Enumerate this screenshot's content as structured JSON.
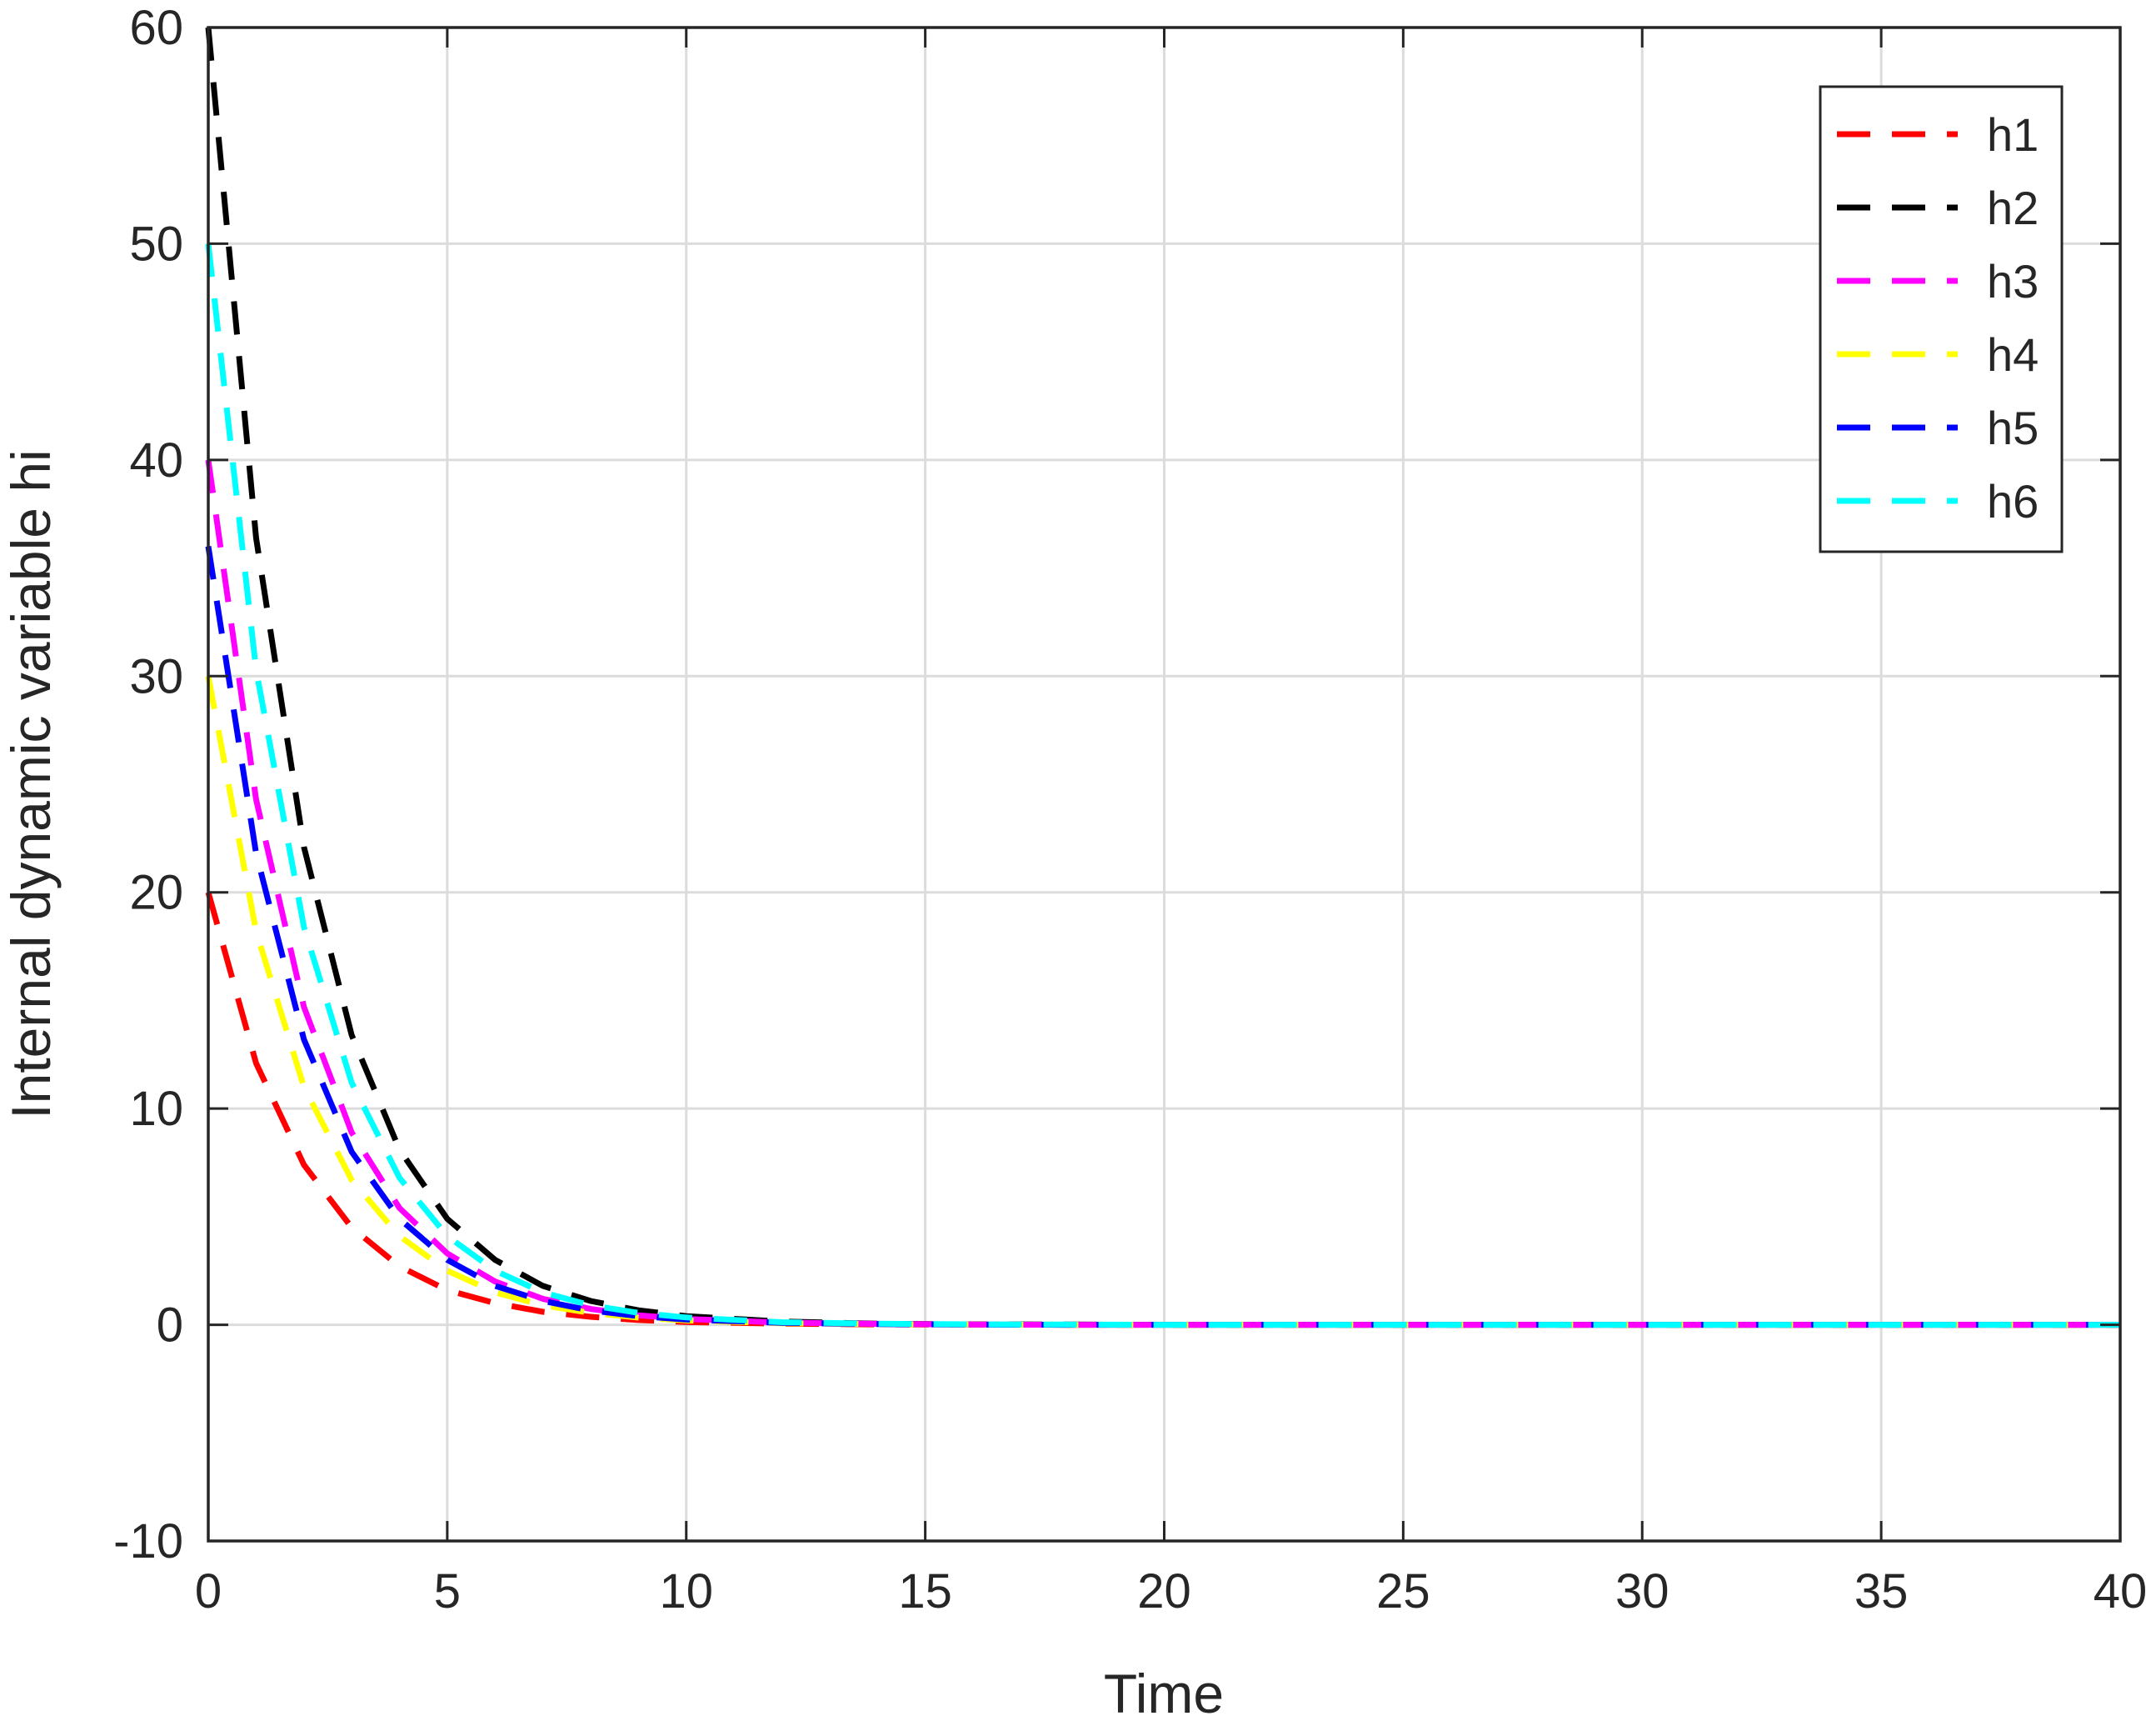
{
  "chart_data": {
    "type": "line",
    "title": "",
    "xlabel": "Time",
    "ylabel": "Internal dynamic variable hi",
    "xlim": [
      0,
      40
    ],
    "ylim": [
      -10,
      60
    ],
    "xticks": [
      0,
      5,
      10,
      15,
      20,
      25,
      30,
      35,
      40
    ],
    "xtick_labels": [
      "0",
      "5",
      "10",
      "15",
      "20",
      "25",
      "30",
      "35",
      "40"
    ],
    "yticks": [
      -10,
      0,
      10,
      20,
      30,
      40,
      50,
      60
    ],
    "ytick_labels": [
      "-10",
      "0",
      "10",
      "20",
      "30",
      "40",
      "50",
      "60"
    ],
    "grid": true,
    "legend_position": "top-right",
    "line_style": "dashed",
    "x": [
      0,
      1,
      2,
      3,
      4,
      5,
      6,
      7,
      8,
      9,
      10,
      12,
      14,
      16,
      18,
      20,
      25,
      30,
      35,
      40
    ],
    "series": [
      {
        "name": "h1",
        "color": "#ff0000",
        "values": [
          20,
          12.1,
          7.4,
          4.5,
          2.7,
          1.6,
          1.0,
          0.6,
          0.37,
          0.22,
          0.13,
          0.05,
          0.02,
          0.01,
          0,
          0,
          0,
          0,
          0,
          0
        ]
      },
      {
        "name": "h2",
        "color": "#000000",
        "values": [
          60,
          36.4,
          22.1,
          13.4,
          8.1,
          4.9,
          3.0,
          1.8,
          1.1,
          0.67,
          0.4,
          0.15,
          0.05,
          0.02,
          0.01,
          0,
          0,
          0,
          0,
          0
        ]
      },
      {
        "name": "h3",
        "color": "#ff00ff",
        "values": [
          40,
          24.3,
          14.7,
          8.9,
          5.4,
          3.3,
          2.0,
          1.2,
          0.73,
          0.44,
          0.27,
          0.1,
          0.04,
          0.01,
          0,
          0,
          0,
          0,
          0,
          0
        ]
      },
      {
        "name": "h4",
        "color": "#ffff00",
        "values": [
          30,
          18.2,
          11.0,
          6.7,
          4.1,
          2.5,
          1.5,
          0.9,
          0.55,
          0.33,
          0.2,
          0.07,
          0.03,
          0.01,
          0,
          0,
          0,
          0,
          0,
          0
        ]
      },
      {
        "name": "h5",
        "color": "#0000ff",
        "values": [
          36,
          21.8,
          13.2,
          8.0,
          4.9,
          3.0,
          1.8,
          1.1,
          0.66,
          0.4,
          0.24,
          0.09,
          0.03,
          0.01,
          0,
          0,
          0,
          0,
          0,
          0
        ]
      },
      {
        "name": "h6",
        "color": "#00ffff",
        "values": [
          50,
          30.3,
          18.4,
          11.2,
          6.8,
          4.1,
          2.5,
          1.5,
          0.9,
          0.55,
          0.34,
          0.12,
          0.05,
          0.02,
          0.01,
          0,
          0,
          0,
          0,
          0
        ]
      }
    ]
  }
}
